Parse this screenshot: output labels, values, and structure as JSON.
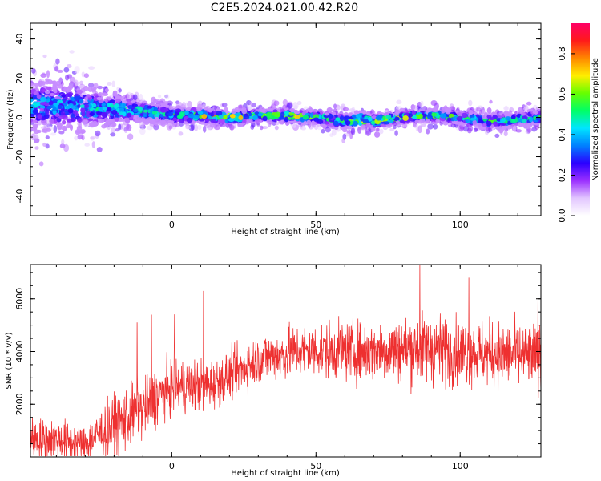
{
  "title": "C2E5.2024.021.00.42.R20",
  "chart_data": [
    {
      "type": "heatmap",
      "xlabel": "Height of straight line (km)",
      "ylabel": "Frequency (Hz)",
      "xlim": [
        -49,
        128
      ],
      "ylim": [
        -50,
        48
      ],
      "xticks": [
        0,
        50,
        100
      ],
      "yticks": [
        -40,
        -20,
        0,
        20,
        40
      ],
      "colorbar": {
        "label": "Normalized spectral amplitude",
        "range": [
          0.0,
          0.95
        ],
        "ticks": [
          "0.0",
          "0.2",
          "0.4",
          "0.6",
          "0.8"
        ],
        "tick_values": [
          0.0,
          0.2,
          0.4,
          0.6,
          0.8
        ],
        "colormap": [
          "#ffffff",
          "#e2c6ff",
          "#9b30ff",
          "#2b00ff",
          "#0080ff",
          "#00e5ff",
          "#00ff66",
          "#66ff00",
          "#ffee00",
          "#ff8800",
          "#ff1a1a",
          "#ff0066"
        ]
      },
      "ridge": {
        "description_points_x": [
          -49,
          -40,
          -30,
          -20,
          -10,
          0,
          10,
          20,
          30,
          40,
          50,
          60,
          65,
          70,
          80,
          90,
          100,
          110,
          120,
          128
        ],
        "center_freq": [
          6,
          6,
          5,
          4,
          3,
          1,
          1,
          0,
          1,
          1,
          0,
          -2,
          -1,
          -2,
          0,
          1,
          0,
          -2,
          -1,
          0
        ],
        "spread_hz": [
          22,
          22,
          18,
          12,
          9,
          7,
          6,
          5,
          5,
          5,
          5,
          6,
          6,
          6,
          5,
          5,
          5,
          6,
          6,
          6
        ],
        "peak_amplitude": [
          0.45,
          0.5,
          0.5,
          0.55,
          0.55,
          0.6,
          0.75,
          0.9,
          0.7,
          0.75,
          0.7,
          0.6,
          0.85,
          0.7,
          0.75,
          0.7,
          0.6,
          0.6,
          0.6,
          0.55
        ]
      }
    },
    {
      "type": "line",
      "xlabel": "Height of straight line (km)",
      "ylabel": "SNR (10 * v/v)",
      "xlim": [
        -49,
        128
      ],
      "ylim": [
        0,
        7300
      ],
      "xticks": [
        0,
        50,
        100
      ],
      "yticks": [
        2000,
        4000,
        6000
      ],
      "series": [
        {
          "color": "#ee3030",
          "trend_x": [
            -49,
            -40,
            -30,
            -25,
            -20,
            -15,
            -10,
            -5,
            0,
            5,
            10,
            15,
            20,
            25,
            30,
            40,
            50,
            60,
            70,
            80,
            90,
            100,
            110,
            120,
            128
          ],
          "trend_y": [
            700,
            650,
            500,
            900,
            1200,
            1500,
            1800,
            2300,
            2600,
            2700,
            2700,
            2800,
            3100,
            3400,
            3700,
            3950,
            4050,
            4000,
            4000,
            4100,
            4100,
            4000,
            3900,
            3850,
            3800
          ],
          "noise_amplitude": [
            700,
            700,
            650,
            800,
            1000,
            1100,
            1000,
            1000,
            900,
            900,
            900,
            800,
            800,
            800,
            800,
            900,
            900,
            1000,
            1000,
            1100,
            1200,
            1100,
            1100,
            1100,
            1100
          ],
          "peak_x": [
            -12,
            -7,
            1,
            11,
            86,
            103,
            127
          ],
          "peak_y": [
            5100,
            5400,
            5400,
            6300,
            7300,
            6800,
            6600
          ]
        }
      ]
    }
  ]
}
